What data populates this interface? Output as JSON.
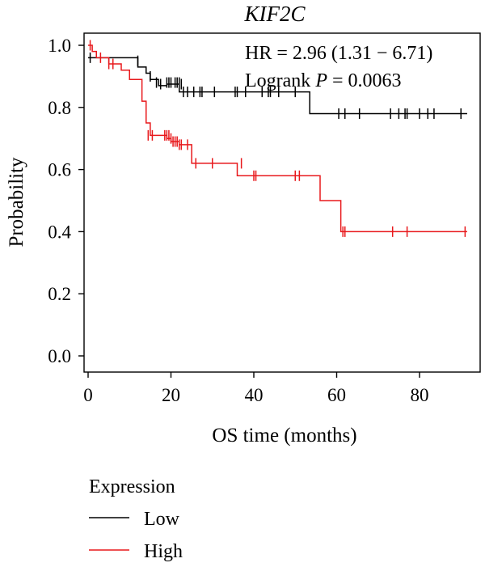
{
  "chart_data": {
    "type": "line",
    "title": "KIF2C",
    "xlabel": "OS time (months)",
    "ylabel": "Probability",
    "xlim": [
      0,
      93
    ],
    "ylim": [
      0,
      1
    ],
    "xticks": [
      0,
      20,
      40,
      60,
      80
    ],
    "xtick_labels": [
      "0",
      "20",
      "40",
      "60",
      "80"
    ],
    "yticks": [
      0,
      0.2,
      0.4,
      0.6,
      0.8,
      1.0
    ],
    "ytick_labels": [
      "0.0",
      "0.2",
      "0.4",
      "0.6",
      "0.8",
      "1.0"
    ],
    "grid": false,
    "annotations": {
      "hr_text": "HR = 2.96 (1.31 − 6.71)",
      "logrank_label": "Logrank ",
      "logrank_p": "P",
      "logrank_value": " = 0.0063"
    },
    "legend": {
      "title": "Expression",
      "placement": "bottom-left"
    },
    "series": [
      {
        "name": "Low",
        "color": "#000000",
        "steps": [
          [
            0,
            0.96
          ],
          [
            12,
            0.93
          ],
          [
            14,
            0.91
          ],
          [
            15,
            0.89
          ],
          [
            17,
            0.87
          ],
          [
            19,
            0.875
          ],
          [
            22,
            0.85
          ],
          [
            53.5,
            0.78
          ],
          [
            91.5,
            0.78
          ]
        ],
        "censors": [
          [
            0.5,
            0.96
          ],
          [
            12,
            0.95
          ],
          [
            15,
            0.9
          ],
          [
            16.5,
            0.88
          ],
          [
            17.5,
            0.875
          ],
          [
            19,
            0.88
          ],
          [
            19.5,
            0.88
          ],
          [
            20,
            0.88
          ],
          [
            21,
            0.88
          ],
          [
            21.5,
            0.88
          ],
          [
            22,
            0.88
          ],
          [
            22.5,
            0.875
          ],
          [
            23,
            0.85
          ],
          [
            24,
            0.85
          ],
          [
            25.5,
            0.85
          ],
          [
            27,
            0.85
          ],
          [
            27.5,
            0.85
          ],
          [
            30.5,
            0.85
          ],
          [
            35.5,
            0.85
          ],
          [
            36,
            0.85
          ],
          [
            38,
            0.85
          ],
          [
            42,
            0.85
          ],
          [
            43.5,
            0.85
          ],
          [
            44,
            0.85
          ],
          [
            46,
            0.85
          ],
          [
            50,
            0.85
          ],
          [
            60.5,
            0.78
          ],
          [
            62,
            0.78
          ],
          [
            65.5,
            0.78
          ],
          [
            73,
            0.78
          ],
          [
            75,
            0.78
          ],
          [
            76.5,
            0.78
          ],
          [
            77,
            0.78
          ],
          [
            80,
            0.78
          ],
          [
            82,
            0.78
          ],
          [
            83.5,
            0.78
          ],
          [
            90,
            0.78
          ]
        ]
      },
      {
        "name": "High",
        "color": "#e8191c",
        "steps": [
          [
            0,
            1.0
          ],
          [
            1,
            0.98
          ],
          [
            2,
            0.96
          ],
          [
            5,
            0.94
          ],
          [
            8,
            0.92
          ],
          [
            10,
            0.89
          ],
          [
            13,
            0.82
          ],
          [
            14,
            0.75
          ],
          [
            15,
            0.71
          ],
          [
            19,
            0.7
          ],
          [
            20,
            0.69
          ],
          [
            22,
            0.68
          ],
          [
            25,
            0.62
          ],
          [
            36,
            0.58
          ],
          [
            53.5,
            0.58
          ],
          [
            56,
            0.5
          ],
          [
            61,
            0.4
          ],
          [
            91.5,
            0.4
          ]
        ],
        "censors": [
          [
            0.5,
            1.0
          ],
          [
            3,
            0.96
          ],
          [
            5,
            0.94
          ],
          [
            6,
            0.94
          ],
          [
            14.5,
            0.71
          ],
          [
            15.5,
            0.71
          ],
          [
            18.5,
            0.71
          ],
          [
            19,
            0.71
          ],
          [
            19.5,
            0.71
          ],
          [
            20,
            0.7
          ],
          [
            20.5,
            0.69
          ],
          [
            21,
            0.69
          ],
          [
            21.5,
            0.69
          ],
          [
            22,
            0.68
          ],
          [
            22.5,
            0.68
          ],
          [
            24,
            0.68
          ],
          [
            26,
            0.62
          ],
          [
            30,
            0.62
          ],
          [
            37,
            0.62
          ],
          [
            40,
            0.58
          ],
          [
            40.5,
            0.58
          ],
          [
            50,
            0.58
          ],
          [
            51,
            0.58
          ],
          [
            61.5,
            0.4
          ],
          [
            62,
            0.4
          ],
          [
            73.5,
            0.4
          ],
          [
            77,
            0.4
          ],
          [
            91,
            0.4
          ]
        ]
      }
    ]
  }
}
